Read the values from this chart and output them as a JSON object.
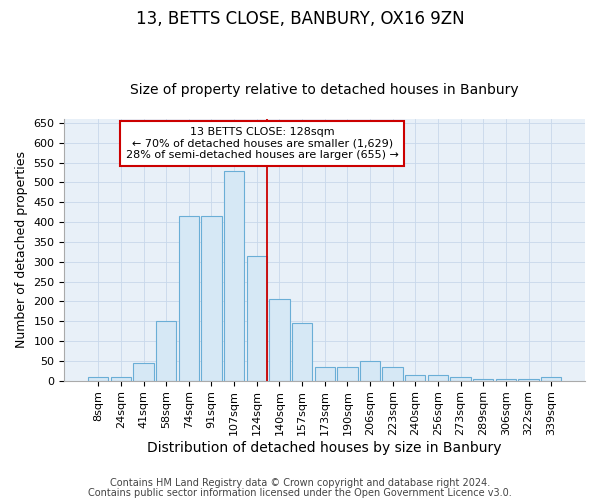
{
  "title": "13, BETTS CLOSE, BANBURY, OX16 9ZN",
  "subtitle": "Size of property relative to detached houses in Banbury",
  "xlabel": "Distribution of detached houses by size in Banbury",
  "ylabel": "Number of detached properties",
  "categories": [
    "8sqm",
    "24sqm",
    "41sqm",
    "58sqm",
    "74sqm",
    "91sqm",
    "107sqm",
    "124sqm",
    "140sqm",
    "157sqm",
    "173sqm",
    "190sqm",
    "206sqm",
    "223sqm",
    "240sqm",
    "256sqm",
    "273sqm",
    "289sqm",
    "306sqm",
    "322sqm",
    "339sqm"
  ],
  "values": [
    8,
    8,
    45,
    150,
    415,
    415,
    530,
    315,
    205,
    145,
    35,
    35,
    50,
    35,
    15,
    15,
    10,
    5,
    5,
    5,
    8
  ],
  "bar_color": "#d6e8f5",
  "bar_edge_color": "#6aaed6",
  "vline_color": "#cc0000",
  "annotation_line1": "13 BETTS CLOSE: 128sqm",
  "annotation_line2": "← 70% of detached houses are smaller (1,629)",
  "annotation_line3": "28% of semi-detached houses are larger (655) →",
  "annotation_box_color": "white",
  "annotation_box_edge": "#cc0000",
  "ylim": [
    0,
    660
  ],
  "yticks": [
    0,
    50,
    100,
    150,
    200,
    250,
    300,
    350,
    400,
    450,
    500,
    550,
    600,
    650
  ],
  "grid_color": "#c8d8ea",
  "background_color": "#e8f0f8",
  "footer1": "Contains HM Land Registry data © Crown copyright and database right 2024.",
  "footer2": "Contains public sector information licensed under the Open Government Licence v3.0.",
  "title_fontsize": 12,
  "subtitle_fontsize": 10,
  "xlabel_fontsize": 10,
  "ylabel_fontsize": 9,
  "tick_fontsize": 8,
  "footer_fontsize": 7,
  "annotation_fontsize": 8
}
